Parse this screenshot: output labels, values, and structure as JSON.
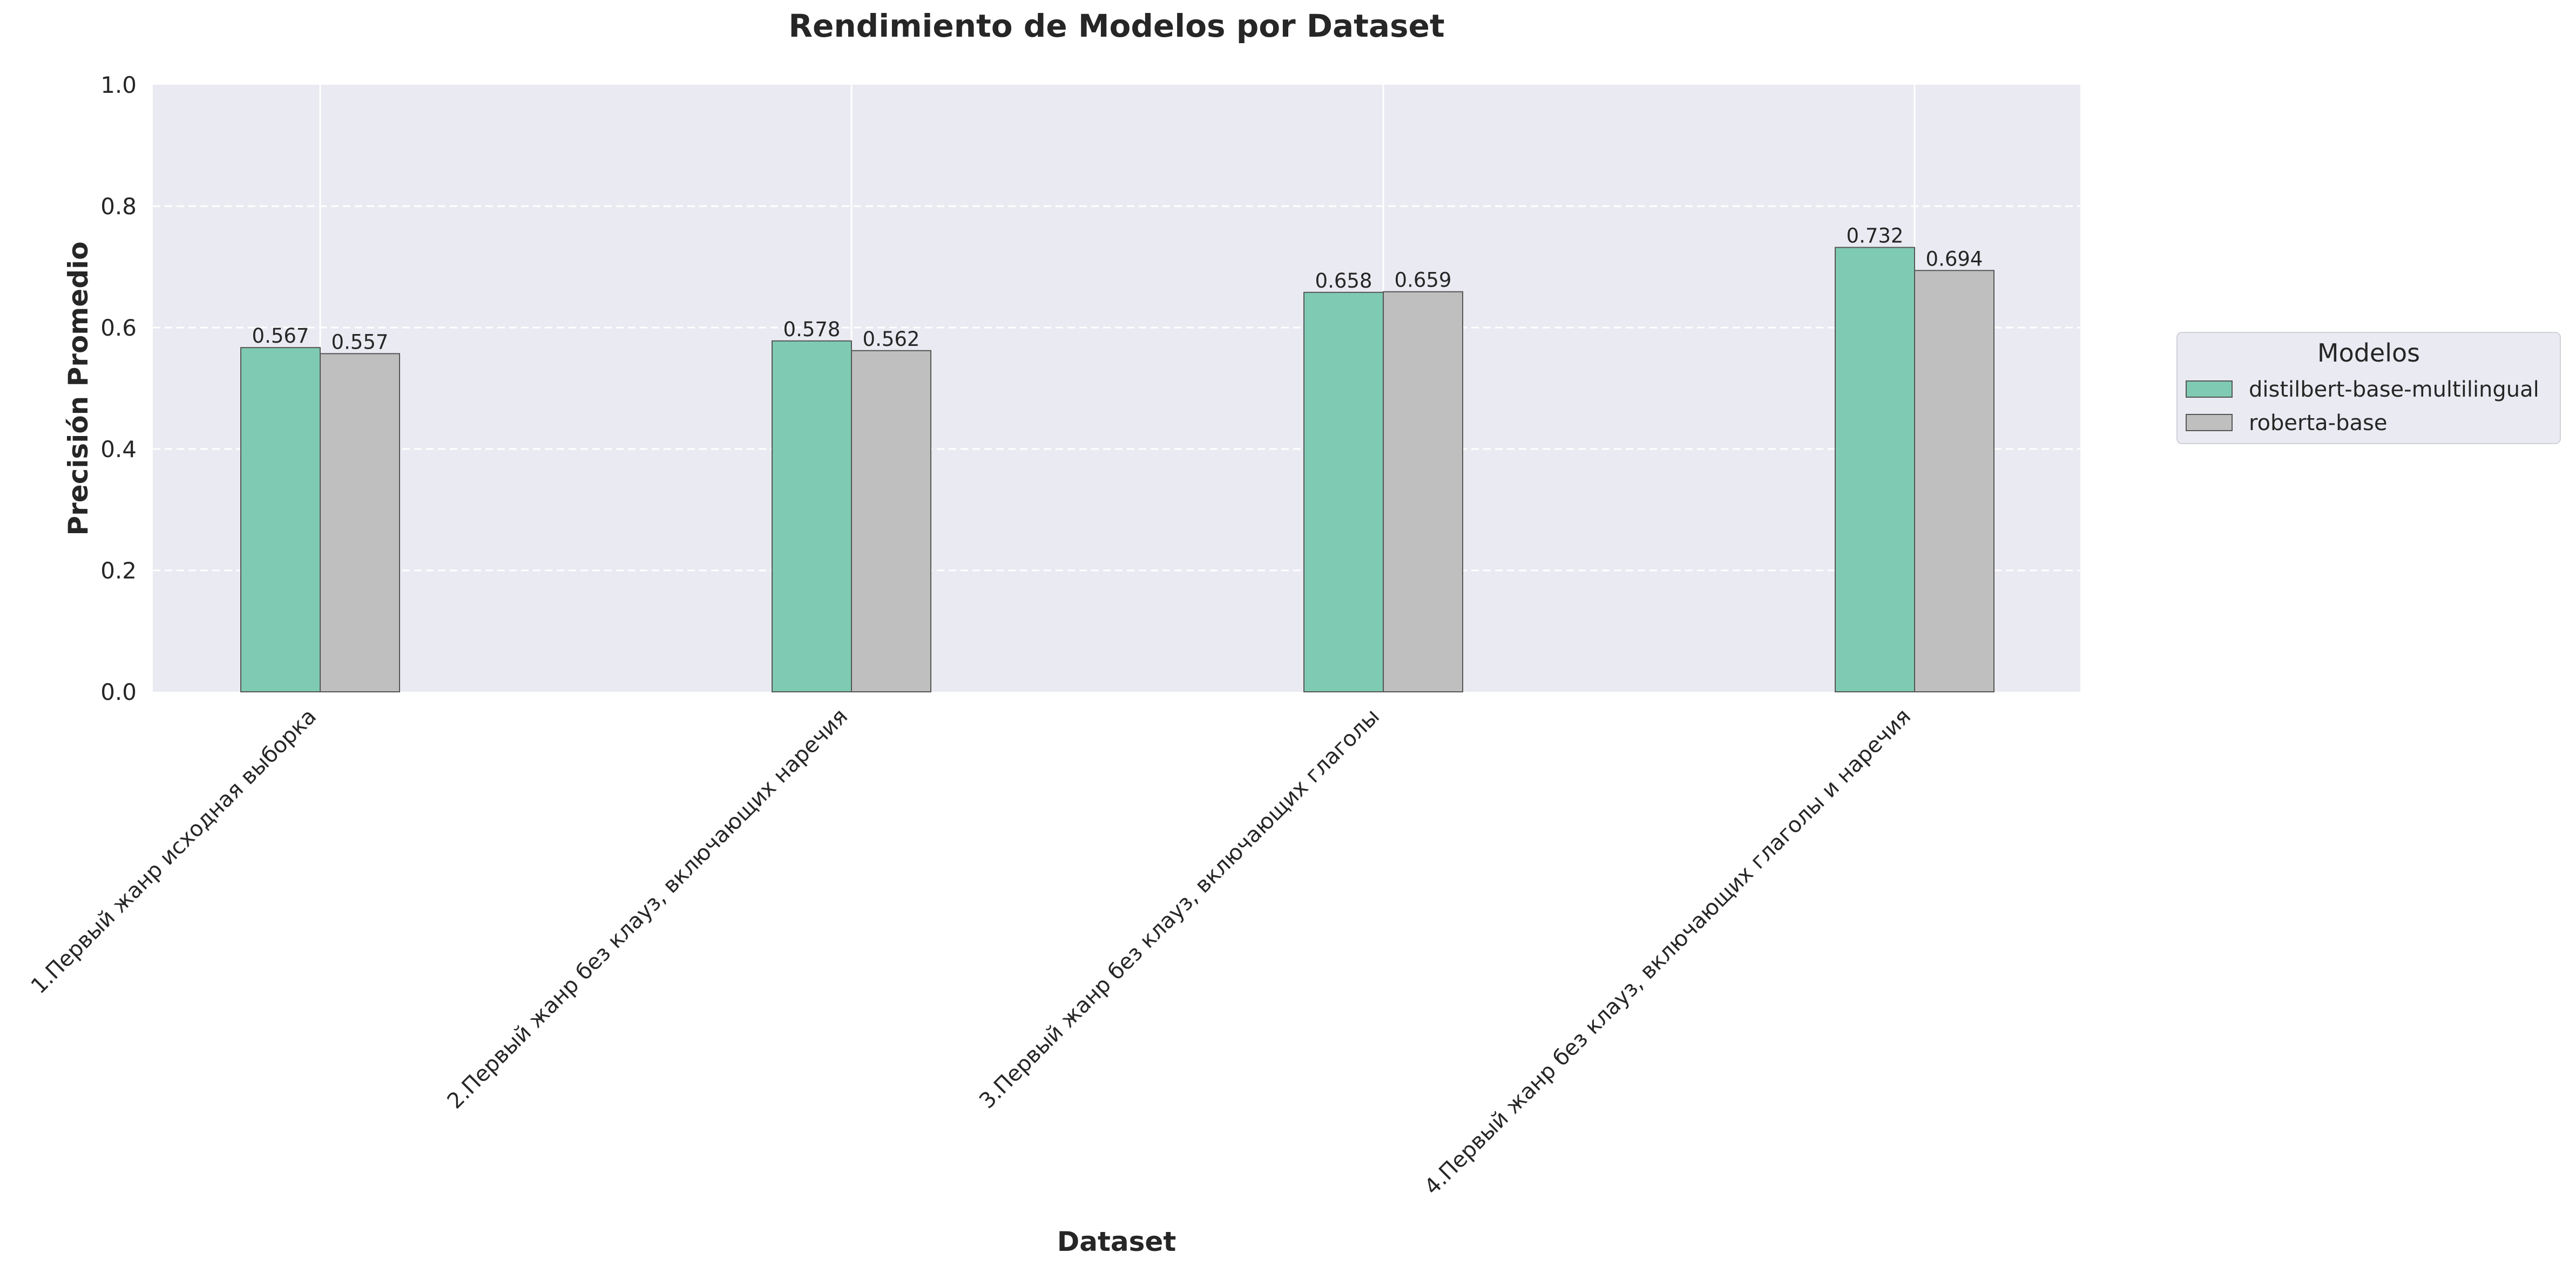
{
  "chart_data": {
    "type": "bar",
    "title": "Rendimiento de Modelos por Dataset",
    "xlabel": "Dataset",
    "ylabel": "Precisión Promedio",
    "ylim": [
      0,
      1.0
    ],
    "yticks": [
      "0.0",
      "0.2",
      "0.4",
      "0.6",
      "0.8",
      "1.0"
    ],
    "grid": true,
    "legend_position": "right",
    "legend_title": "Modelos",
    "categories": [
      "1.Первый жанр исходная выборка",
      "2.Первый жанр без клауз, включающих наречия",
      "3.Первый жанр без клауз, включающих глаголы",
      "4.Первый жанр без клауз, включающих глаголы и наречия"
    ],
    "series": [
      {
        "name": "distilbert-base-multilingual",
        "color": "#7fcab3",
        "values": [
          0.567,
          0.578,
          0.658,
          0.732
        ],
        "labels": [
          "0.567",
          "0.578",
          "0.658",
          "0.732"
        ]
      },
      {
        "name": "roberta-base",
        "color": "#bfbfbf",
        "values": [
          0.557,
          0.562,
          0.659,
          0.694
        ],
        "labels": [
          "0.557",
          "0.562",
          "0.659",
          "0.694"
        ]
      }
    ],
    "colors": {
      "plot_background": "#eaeaf2",
      "grid": "#ffffff",
      "bar_edge": "#555555"
    }
  }
}
